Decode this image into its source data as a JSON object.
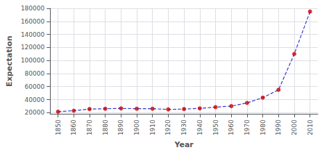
{
  "chart_data": {
    "type": "line",
    "xlabel": "Year",
    "ylabel": "Expectation",
    "x": [
      1850,
      1860,
      1870,
      1880,
      1890,
      1900,
      1910,
      1920,
      1930,
      1940,
      1950,
      1960,
      1970,
      1980,
      1990,
      2000,
      2010
    ],
    "series": [
      {
        "type": "line",
        "color": "#3333cc",
        "line_style": "dashed",
        "values": [
          21500,
          23000,
          25500,
          26000,
          26500,
          26000,
          26000,
          25000,
          25500,
          26500,
          28500,
          30000,
          35000,
          43000,
          55000,
          110000,
          175000
        ]
      },
      {
        "type": "scatter",
        "color": "#cc0000",
        "marker": "circle",
        "values": [
          21500,
          23000,
          25500,
          26000,
          26500,
          26000,
          26000,
          25000,
          25500,
          26500,
          28500,
          30000,
          35000,
          43000,
          55000,
          110000,
          175000
        ]
      }
    ],
    "xlim": [
      1845,
      2015
    ],
    "xticks": [
      1850,
      1860,
      1870,
      1880,
      1890,
      1900,
      1910,
      1920,
      1930,
      1940,
      1950,
      1960,
      1970,
      1980,
      1990,
      2000,
      2010
    ],
    "ylim": [
      18000,
      180000
    ],
    "yticks": [
      20000,
      40000,
      60000,
      80000,
      100000,
      120000,
      140000,
      160000,
      180000
    ],
    "grid": true
  }
}
